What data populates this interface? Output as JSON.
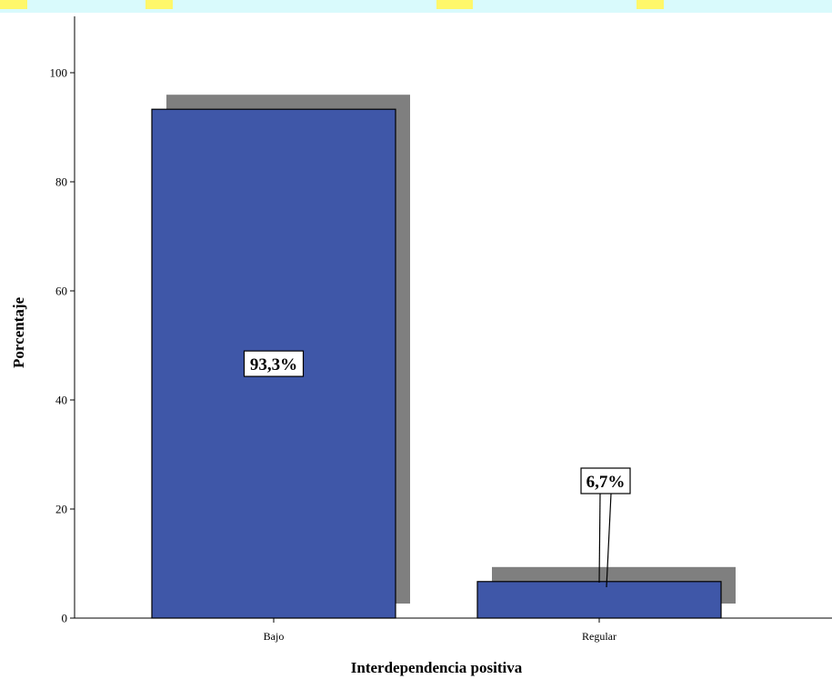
{
  "chart_data": {
    "type": "bar",
    "categories": [
      "Bajo",
      "Regular"
    ],
    "values": [
      93.3,
      6.7
    ],
    "data_labels": [
      "93,3%",
      "6,7%"
    ],
    "xlabel": "Interdependencia positiva",
    "ylabel": "Porcentaje",
    "ylim": [
      0,
      100
    ],
    "yticks": [
      0,
      20,
      40,
      60,
      80,
      100
    ],
    "grid": false,
    "legend": "none",
    "colors": {
      "bar": "#3f57a8",
      "shadow": "#7f7f7f",
      "axis": "#000000",
      "background": "#ffffff",
      "top_band_cyan": "#d9fafc",
      "top_band_yellow": "#fff76a"
    }
  }
}
